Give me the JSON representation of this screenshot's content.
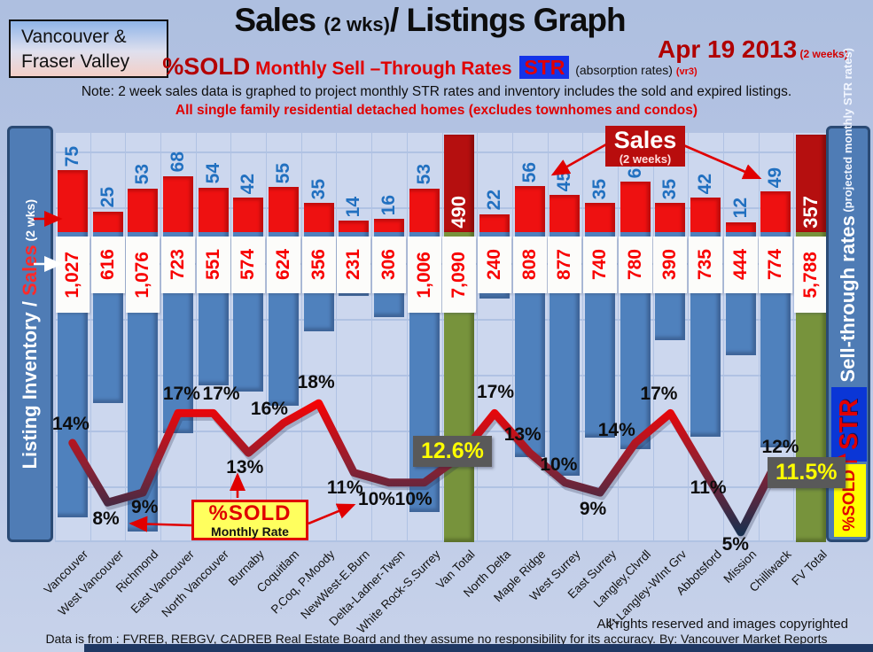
{
  "header": {
    "region_box_line1": "Vancouver &",
    "region_box_line2": "Fraser Valley",
    "title_main": "Sales ",
    "title_paren": "(2 wks)",
    "title_rest": "/ Listings Graph",
    "date": "Apr 19 2013",
    "date_sub": " (2 weeks)",
    "subtitle_sold": "%SOLD",
    "subtitle_rates": " Monthly Sell –Through Rates ",
    "subtitle_str": "STR",
    "subtitle_abs": " (absorption rates) ",
    "subtitle_ver": "(vr3)",
    "note": "Note: 2 week sales data is graphed to project monthly STR rates and inventory includes the sold and expired listings.",
    "scope": "All single family residential detached homes (excludes townhomes and condos)"
  },
  "axes": {
    "left_label_white": "Listing Inventory / ",
    "left_label_red": "Sales",
    "left_label_suffix": " (2  wks)",
    "right_label_bold": "Sell-through rates",
    "right_label_small": "  (projected monthly STR rates)",
    "right_chip_str": "STR",
    "right_chip_sold": "%SOLD"
  },
  "annotations": {
    "sales_legend_title": "Sales",
    "sales_legend_sub": "(2 weeks)",
    "pct_box_title": "%SOLD",
    "pct_box_sub": "Monthly Rate",
    "van_total_pct": "12.6%",
    "fv_total_pct": "11.5%"
  },
  "chart_data": {
    "type": "bar+line",
    "title": "Sales (2 wks)/ Listings Graph",
    "date": "Apr 19 2013 (2 weeks)",
    "grid": true,
    "categories": [
      "Vancouver",
      "West Vancouver",
      "Richmond",
      "East Vancouver",
      "North Vancouver",
      "Burnaby",
      "Coquitlam",
      "P.Coq, P.Moody",
      "NewWest-E.Burn",
      "Delta-Ladner-Twsn",
      "White Rock-S.Surrey",
      "Van Total",
      "North Delta",
      "Maple Ridge",
      "West Surrey",
      "East Surrey",
      "Langley,Clvrdl",
      "Ft Langley-WInt Grv",
      "Abbotsford",
      "Mission",
      "Chilliwack",
      "FV Total"
    ],
    "total_indexes": [
      11,
      21
    ],
    "series": [
      {
        "name": "Sales (2 weeks)",
        "type": "bar",
        "color": "#ee1111",
        "total_color": "#b50f0f",
        "values": [
          75,
          25,
          53,
          68,
          54,
          42,
          55,
          35,
          14,
          16,
          53,
          490,
          22,
          56,
          45,
          35,
          61,
          35,
          42,
          12,
          49,
          357
        ]
      },
      {
        "name": "Listing Inventory (includes sold and expired listings)",
        "type": "bar",
        "color": "#4f81bd",
        "total_color": "#77933c",
        "values": [
          1027,
          616,
          1076,
          723,
          551,
          574,
          624,
          356,
          231,
          306,
          1006,
          7090,
          240,
          808,
          877,
          740,
          780,
          390,
          735,
          444,
          774,
          5788
        ]
      },
      {
        "name": "%SOLD Monthly Sell-Through Rate (STR)",
        "type": "line",
        "color_high": "#ff0000",
        "color_low": "#17304f",
        "values": [
          14,
          8,
          9,
          17,
          17,
          13,
          16,
          18,
          11,
          10,
          10,
          12.6,
          17,
          13,
          10,
          9,
          14,
          17,
          11,
          5,
          12,
          11.5
        ]
      }
    ],
    "ylabel_left": "Listing Inventory / Sales (2 wks)",
    "ylabel_right": "Sell-through rates (projected monthly STR rates)"
  },
  "footer": {
    "rights": "All rights reserved and  images copyrighted",
    "source": "Data is from : FVREB, REBGV, CADREB Real Estate Board and they assume no responsibility for its accuracy. By: Vancouver Market Reports"
  },
  "colors": {
    "accent_red": "#e00000",
    "dark_red": "#b50f0f",
    "bar_blue": "#4f81bd",
    "bar_green": "#77933c",
    "panel_blue": "#4f7cb5",
    "gray_box": "#595959",
    "gray_box_text": "#ffff00"
  }
}
